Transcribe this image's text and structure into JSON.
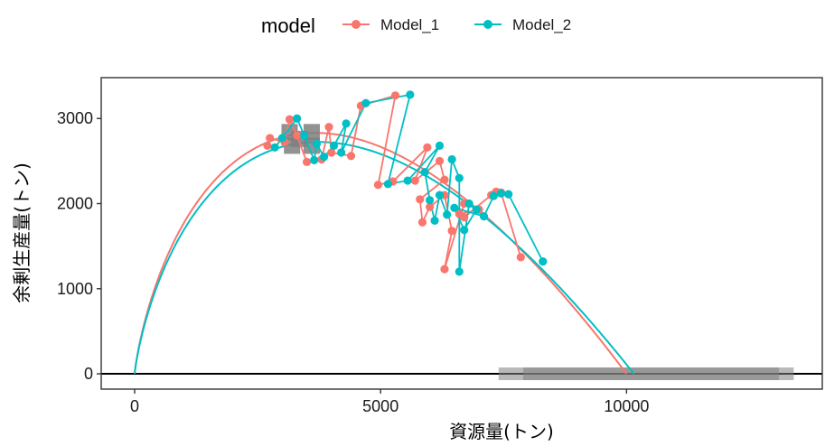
{
  "legend": {
    "title": "model",
    "entries": [
      {
        "label": "Model_1",
        "color": "#F8766D"
      },
      {
        "label": "Model_2",
        "color": "#00BFC4"
      }
    ]
  },
  "chart_data": {
    "type": "line",
    "xlabel": "資源量(トン)",
    "ylabel": "余剰生産量(トン)",
    "xlim": [
      -680,
      13980
    ],
    "ylim": [
      -180,
      3480
    ],
    "x_ticks": [
      {
        "value": 0,
        "label": "0"
      },
      {
        "value": 5000,
        "label": "5000"
      },
      {
        "value": 10000,
        "label": "10000"
      }
    ],
    "y_ticks": [
      {
        "value": 0,
        "label": "0"
      },
      {
        "value": 1000,
        "label": "1000"
      },
      {
        "value": 2000,
        "label": "2000"
      },
      {
        "value": 3000,
        "label": "3000"
      }
    ],
    "grid": false,
    "legend_position": "top",
    "hline_y": 0,
    "gray_bars": [
      {
        "x_min": 7400,
        "x_max": 13400,
        "y": 0
      },
      {
        "x_min": 7900,
        "x_max": 13100,
        "y": 0
      }
    ],
    "gray_squares": [
      [
        3150,
        2840
      ],
      [
        3600,
        2840
      ],
      [
        3200,
        2680
      ],
      [
        3600,
        2680
      ],
      [
        3350,
        2760
      ]
    ],
    "series": [
      {
        "name": "Model_1",
        "color": "#F8766D",
        "curve": {
          "K": 10000,
          "peak_x": 2700,
          "peak_y": 2720
        },
        "points": [
          [
            2700,
            2680
          ],
          [
            2750,
            2770
          ],
          [
            3050,
            2720
          ],
          [
            3150,
            2990
          ],
          [
            3300,
            2800
          ],
          [
            3500,
            2490
          ],
          [
            3800,
            2520
          ],
          [
            3950,
            2900
          ],
          [
            4000,
            2600
          ],
          [
            4400,
            2560
          ],
          [
            4600,
            3150
          ],
          [
            5300,
            3270
          ],
          [
            4950,
            2220
          ],
          [
            5250,
            2260
          ],
          [
            5950,
            2660
          ],
          [
            5700,
            2270
          ],
          [
            6200,
            2500
          ],
          [
            6300,
            2280
          ],
          [
            5800,
            2050
          ],
          [
            5850,
            1780
          ],
          [
            6000,
            1960
          ],
          [
            6300,
            2100
          ],
          [
            6450,
            1680
          ],
          [
            6300,
            1230
          ],
          [
            6700,
            2000
          ],
          [
            7000,
            1930
          ],
          [
            6600,
            1880
          ],
          [
            6700,
            1840
          ],
          [
            7250,
            2100
          ],
          [
            7350,
            2140
          ],
          [
            7450,
            2130
          ],
          [
            7850,
            1370
          ]
        ]
      },
      {
        "name": "Model_2",
        "color": "#00BFC4",
        "curve": {
          "K": 10150,
          "peak_x": 3250,
          "peak_y": 2700
        },
        "points": [
          [
            2850,
            2660
          ],
          [
            3000,
            2770
          ],
          [
            3300,
            3000
          ],
          [
            3450,
            2800
          ],
          [
            3650,
            2510
          ],
          [
            3700,
            2700
          ],
          [
            3850,
            2550
          ],
          [
            4050,
            2680
          ],
          [
            4300,
            2940
          ],
          [
            4200,
            2600
          ],
          [
            4700,
            3180
          ],
          [
            5600,
            3280
          ],
          [
            5150,
            2230
          ],
          [
            5550,
            2270
          ],
          [
            6200,
            2680
          ],
          [
            5900,
            2370
          ],
          [
            6000,
            2040
          ],
          [
            6100,
            1800
          ],
          [
            6200,
            2100
          ],
          [
            6350,
            1870
          ],
          [
            6450,
            2520
          ],
          [
            6600,
            2300
          ],
          [
            6600,
            1200
          ],
          [
            6800,
            2000
          ],
          [
            6950,
            1930
          ],
          [
            6700,
            1690
          ],
          [
            6500,
            1950
          ],
          [
            7100,
            1850
          ],
          [
            7300,
            2090
          ],
          [
            7450,
            2120
          ],
          [
            7600,
            2110
          ],
          [
            8300,
            1320
          ]
        ]
      }
    ]
  }
}
